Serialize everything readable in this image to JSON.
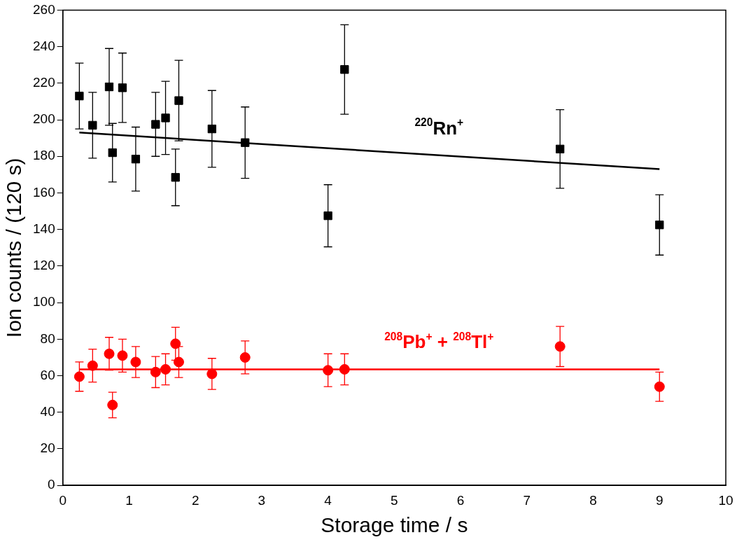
{
  "chart_data": {
    "type": "scatter",
    "xlabel": "Storage time / s",
    "ylabel": "Ion counts / (120 s)",
    "xlim": [
      0,
      10
    ],
    "xticks": [
      0,
      1,
      2,
      3,
      4,
      5,
      6,
      7,
      8,
      9,
      10
    ],
    "ylim": [
      0,
      260
    ],
    "yticks": [
      0,
      20,
      40,
      60,
      80,
      100,
      120,
      140,
      160,
      180,
      200,
      220,
      240,
      260
    ],
    "grid": false,
    "legend": false,
    "series": [
      {
        "name": "$^{220}$Rn$^{+}$",
        "marker": "square",
        "color": "#000000",
        "x": [
          0.25,
          0.45,
          0.7,
          0.75,
          0.9,
          1.1,
          1.4,
          1.55,
          1.7,
          1.75,
          2.25,
          2.75,
          4,
          4.25,
          7.5,
          9
        ],
        "values": [
          213,
          197,
          218,
          182,
          217.5,
          178.5,
          197.5,
          201,
          168.5,
          210.5,
          195,
          187.5,
          147.5,
          227.5,
          184,
          142.5
        ],
        "errors": [
          18,
          18,
          21,
          16,
          19,
          17.5,
          17.5,
          20,
          15.5,
          22,
          21,
          19.5,
          17,
          24.5,
          21.5,
          16.5
        ]
      },
      {
        "name": "$^{208}$Pb$^{+}$ + $^{208}$Tl$^{+}$",
        "marker": "circle",
        "color": "#ff0000",
        "x": [
          0.25,
          0.45,
          0.7,
          0.75,
          0.9,
          1.1,
          1.4,
          1.55,
          1.7,
          1.75,
          2.25,
          2.75,
          4,
          4.25,
          7.5,
          9
        ],
        "values": [
          59.5,
          65.5,
          72,
          44,
          71,
          67.5,
          62,
          63.5,
          77.5,
          67.5,
          61,
          70,
          63,
          63.5,
          76,
          54
        ],
        "errors": [
          8,
          9,
          9,
          7,
          9,
          8.5,
          8.5,
          8.5,
          9,
          8.5,
          8.5,
          9,
          9,
          8.5,
          11,
          8
        ]
      },
      {
        "type": "line",
        "marker": "none",
        "color": "#000000",
        "x": [
          0.25,
          9
        ],
        "values": [
          193,
          173
        ]
      },
      {
        "type": "line",
        "marker": "none",
        "color": "#ff0000",
        "x": [
          0.25,
          9
        ],
        "values": [
          63.5,
          63.5
        ]
      }
    ]
  }
}
